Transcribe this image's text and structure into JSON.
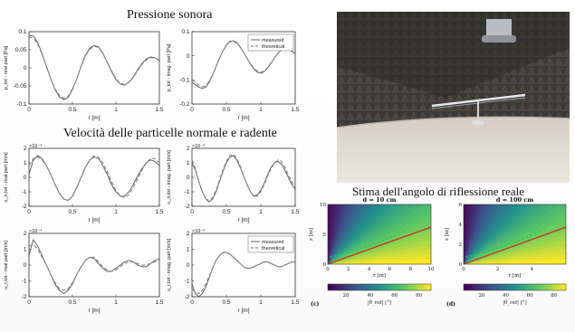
{
  "titles": {
    "sound_pressure": "Pressione sonora",
    "particle_velocity": "Velocità delle particelle normale e radente",
    "reflection_angle": "Stima dell'angolo di riflessione reale"
  },
  "legend": {
    "measured": "measured",
    "theoretical": "theoretical"
  },
  "colors": {
    "measured": "#555555",
    "theoretical": "#8a8a8a",
    "reflect_line": "#c0392b",
    "dash_line": "#22c55e"
  },
  "chart_data": [
    {
      "type": "line",
      "id": "p-real",
      "ylabel": "p_tot - real part [Pa]",
      "xlabel": "r [m]",
      "xlim": [
        0,
        1.5
      ],
      "ylim": [
        -0.1,
        0.1
      ],
      "xticks": [
        "0",
        "0.5",
        "1",
        "1.5"
      ],
      "yticks": [
        "0.1",
        "0.05",
        "0",
        "-0.05",
        "-0.1"
      ],
      "exponent": "",
      "legend": false,
      "x": [
        0,
        0.05,
        0.1,
        0.15,
        0.2,
        0.25,
        0.3,
        0.35,
        0.4,
        0.45,
        0.5,
        0.55,
        0.6,
        0.65,
        0.7,
        0.75,
        0.8,
        0.85,
        0.9,
        0.95,
        1.0,
        1.05,
        1.1,
        1.15,
        1.2,
        1.25,
        1.3,
        1.35,
        1.4,
        1.45,
        1.5
      ],
      "series": [
        {
          "name": "measured",
          "values": [
            0.09,
            0.088,
            0.07,
            0.04,
            0.005,
            -0.03,
            -0.06,
            -0.08,
            -0.088,
            -0.082,
            -0.06,
            -0.03,
            0.005,
            0.035,
            0.055,
            0.062,
            0.058,
            0.04,
            0.015,
            -0.01,
            -0.032,
            -0.045,
            -0.048,
            -0.04,
            -0.025,
            -0.005,
            0.012,
            0.025,
            0.03,
            0.028,
            0.02
          ]
        },
        {
          "name": "theoretical",
          "values": [
            0.085,
            0.082,
            0.066,
            0.038,
            0.004,
            -0.03,
            -0.058,
            -0.076,
            -0.084,
            -0.078,
            -0.058,
            -0.03,
            0.003,
            0.033,
            0.052,
            0.06,
            0.056,
            0.04,
            0.016,
            -0.008,
            -0.03,
            -0.043,
            -0.046,
            -0.04,
            -0.026,
            -0.008,
            0.01,
            0.022,
            0.028,
            0.027,
            0.021
          ]
        }
      ]
    },
    {
      "type": "line",
      "id": "p-imag",
      "ylabel": "p_tot - imag. part [Pa]",
      "xlabel": "r [m]",
      "xlim": [
        0,
        1.5
      ],
      "ylim": [
        -0.2,
        0.1
      ],
      "xticks": [
        "0",
        "0.5",
        "1",
        "1.5"
      ],
      "yticks": [
        "0.1",
        "0",
        "-0.1",
        "-0.2"
      ],
      "exponent": "",
      "legend": true,
      "x": [
        0,
        0.05,
        0.1,
        0.15,
        0.2,
        0.25,
        0.3,
        0.35,
        0.4,
        0.45,
        0.5,
        0.55,
        0.6,
        0.65,
        0.7,
        0.75,
        0.8,
        0.85,
        0.9,
        0.95,
        1.0,
        1.05,
        1.1,
        1.15,
        1.2,
        1.25,
        1.3,
        1.35,
        1.4,
        1.45,
        1.5
      ],
      "series": [
        {
          "name": "measured",
          "values": [
            -0.11,
            -0.12,
            -0.13,
            -0.135,
            -0.13,
            -0.11,
            -0.08,
            -0.045,
            -0.01,
            0.02,
            0.045,
            0.06,
            0.062,
            0.055,
            0.038,
            0.015,
            -0.01,
            -0.035,
            -0.055,
            -0.068,
            -0.072,
            -0.066,
            -0.05,
            -0.03,
            -0.008,
            0.012,
            0.025,
            0.03,
            0.028,
            0.02,
            0.008
          ]
        },
        {
          "name": "theoretical",
          "values": [
            -0.1,
            -0.11,
            -0.122,
            -0.128,
            -0.124,
            -0.106,
            -0.078,
            -0.044,
            -0.01,
            0.02,
            0.043,
            0.058,
            0.06,
            0.052,
            0.036,
            0.014,
            -0.01,
            -0.033,
            -0.052,
            -0.064,
            -0.068,
            -0.063,
            -0.048,
            -0.028,
            -0.008,
            0.01,
            0.023,
            0.028,
            0.026,
            0.019,
            0.008
          ]
        }
      ]
    },
    {
      "type": "line",
      "id": "un-real",
      "ylabel": "u_n,tot - real part [m/s]",
      "xlabel": "r [m]",
      "xlim": [
        0,
        1.5
      ],
      "ylim": [
        -2,
        2
      ],
      "xticks": [
        "0",
        "0.5",
        "1",
        "1.5"
      ],
      "yticks": [
        "2",
        "1",
        "0",
        "-1",
        "-2"
      ],
      "exponent": "×10⁻⁴",
      "legend": false,
      "x": [
        0,
        0.05,
        0.1,
        0.15,
        0.2,
        0.25,
        0.3,
        0.35,
        0.4,
        0.45,
        0.5,
        0.55,
        0.6,
        0.65,
        0.7,
        0.75,
        0.8,
        0.85,
        0.9,
        0.95,
        1.0,
        1.05,
        1.1,
        1.15,
        1.2,
        1.25,
        1.3,
        1.35,
        1.4,
        1.45,
        1.5
      ],
      "series": [
        {
          "name": "measured",
          "values": [
            0.2,
            1.2,
            1.5,
            1.3,
            0.8,
            0.2,
            -0.5,
            -1.1,
            -1.5,
            -1.6,
            -1.3,
            -0.7,
            0.0,
            0.7,
            1.2,
            1.4,
            1.3,
            0.8,
            0.2,
            -0.5,
            -1.0,
            -1.3,
            -1.3,
            -1.0,
            -0.5,
            0.1,
            0.6,
            1.0,
            1.2,
            1.1,
            0.8
          ]
        },
        {
          "name": "theoretical",
          "values": [
            0.8,
            1.3,
            1.4,
            1.2,
            0.8,
            0.2,
            -0.5,
            -1.1,
            -1.5,
            -1.6,
            -1.3,
            -0.7,
            0.0,
            0.7,
            1.2,
            1.5,
            1.4,
            1.0,
            0.4,
            -0.3,
            -0.9,
            -1.3,
            -1.4,
            -1.2,
            -0.7,
            -0.1,
            0.5,
            1.0,
            1.3,
            1.3,
            1.0
          ]
        }
      ]
    },
    {
      "type": "line",
      "id": "un-imag",
      "ylabel": "u_n,tot - imag. part [m/s]",
      "xlabel": "r [m]",
      "xlim": [
        0,
        1.5
      ],
      "ylim": [
        -2,
        2
      ],
      "xticks": [
        "0",
        "0.5",
        "1",
        "1.5"
      ],
      "yticks": [
        "2",
        "1",
        "0",
        "-1",
        "-2"
      ],
      "exponent": "×10⁻⁴",
      "legend": false,
      "x": [
        0,
        0.05,
        0.1,
        0.15,
        0.2,
        0.25,
        0.3,
        0.35,
        0.4,
        0.45,
        0.5,
        0.55,
        0.6,
        0.65,
        0.7,
        0.75,
        0.8,
        0.85,
        0.9,
        0.95,
        1.0,
        1.05,
        1.1,
        1.15,
        1.2,
        1.25,
        1.3,
        1.35,
        1.4,
        1.45,
        1.5
      ],
      "series": [
        {
          "name": "measured",
          "values": [
            1.0,
            0.5,
            -0.3,
            -1.0,
            -1.5,
            -1.7,
            -1.5,
            -1.0,
            -0.3,
            0.4,
            1.0,
            1.4,
            1.5,
            1.2,
            0.7,
            0.1,
            -0.5,
            -1.0,
            -1.3,
            -1.2,
            -0.9,
            -0.4,
            0.2,
            0.7,
            1.0,
            1.1,
            0.9,
            0.5,
            0.0,
            -0.5,
            -0.8
          ]
        },
        {
          "name": "theoretical",
          "values": [
            1.2,
            0.6,
            -0.3,
            -1.0,
            -1.5,
            -1.6,
            -1.4,
            -0.9,
            -0.2,
            0.5,
            1.1,
            1.5,
            1.6,
            1.3,
            0.8,
            0.1,
            -0.5,
            -1.0,
            -1.3,
            -1.3,
            -1.0,
            -0.5,
            0.1,
            0.6,
            1.0,
            1.2,
            1.1,
            0.7,
            0.2,
            -0.3,
            -0.7
          ]
        }
      ]
    },
    {
      "type": "line",
      "id": "ur-real",
      "ylabel": "u_r,tot - real part [m/s]",
      "xlabel": "r [m]",
      "xlim": [
        0,
        1.5
      ],
      "ylim": [
        -2,
        2
      ],
      "xticks": [
        "0",
        "0.5",
        "1",
        "1.5"
      ],
      "yticks": [
        "2",
        "1",
        "0",
        "-1",
        "-2"
      ],
      "exponent": "×10⁻⁴",
      "legend": false,
      "x": [
        0,
        0.05,
        0.1,
        0.15,
        0.2,
        0.25,
        0.3,
        0.35,
        0.4,
        0.45,
        0.5,
        0.55,
        0.6,
        0.65,
        0.7,
        0.75,
        0.8,
        0.85,
        0.9,
        0.95,
        1.0,
        1.05,
        1.1,
        1.15,
        1.2,
        1.25,
        1.3,
        1.35,
        1.4,
        1.45,
        1.5
      ],
      "series": [
        {
          "name": "measured",
          "values": [
            0.6,
            1.6,
            1.2,
            0.6,
            0.0,
            -0.6,
            -1.2,
            -1.6,
            -1.8,
            -1.6,
            -1.2,
            -0.6,
            -0.1,
            0.3,
            0.5,
            0.4,
            0.1,
            -0.2,
            -0.4,
            -0.4,
            -0.2,
            0.0,
            0.2,
            0.3,
            0.2,
            0.0,
            -0.1,
            -0.1,
            0.1,
            0.3,
            0.4
          ]
        },
        {
          "name": "theoretical",
          "values": [
            1.2,
            1.3,
            1.0,
            0.5,
            0.0,
            -0.6,
            -1.1,
            -1.5,
            -1.6,
            -1.5,
            -1.1,
            -0.6,
            -0.1,
            0.3,
            0.5,
            0.5,
            0.2,
            -0.1,
            -0.3,
            -0.4,
            -0.3,
            -0.1,
            0.1,
            0.2,
            0.2,
            0.1,
            0.0,
            0.0,
            0.1,
            0.2,
            0.3
          ]
        }
      ]
    },
    {
      "type": "line",
      "id": "ur-imag",
      "ylabel": "u_r,tot - imag. part [m/s]",
      "xlabel": "r [m]",
      "xlim": [
        0,
        1.5
      ],
      "ylim": [
        -2,
        2
      ],
      "xticks": [
        "0",
        "0.5",
        "1",
        "1.5"
      ],
      "yticks": [
        "2",
        "1",
        "0",
        "-1",
        "-2"
      ],
      "exponent": "×10⁻⁴",
      "legend": true,
      "x": [
        0,
        0.05,
        0.1,
        0.15,
        0.2,
        0.25,
        0.3,
        0.35,
        0.4,
        0.45,
        0.5,
        0.55,
        0.6,
        0.65,
        0.7,
        0.75,
        0.8,
        0.85,
        0.9,
        0.95,
        1.0,
        1.05,
        1.1,
        1.15,
        1.2,
        1.25,
        1.3,
        1.35,
        1.4,
        1.45,
        1.5
      ],
      "series": [
        {
          "name": "measured",
          "values": [
            -1.2,
            -1.8,
            -2.0,
            -1.8,
            -1.4,
            -0.8,
            -0.2,
            0.3,
            0.6,
            0.8,
            0.8,
            0.7,
            0.5,
            0.3,
            0.1,
            -0.1,
            -0.2,
            -0.2,
            -0.1,
            0.0,
            0.1,
            0.2,
            0.2,
            0.1,
            0.0,
            -0.1,
            -0.1,
            0.0,
            0.1,
            0.2,
            0.2
          ]
        },
        {
          "name": "theoretical",
          "values": [
            -1.5,
            -1.7,
            -1.8,
            -1.6,
            -1.2,
            -0.7,
            -0.2,
            0.3,
            0.6,
            0.8,
            0.8,
            0.7,
            0.5,
            0.3,
            0.1,
            -0.1,
            -0.2,
            -0.2,
            -0.1,
            0.0,
            0.1,
            0.2,
            0.2,
            0.1,
            0.0,
            -0.1,
            -0.1,
            0.0,
            0.1,
            0.2,
            0.2
          ]
        }
      ]
    },
    {
      "type": "heatmap",
      "id": "hm-c",
      "title": "d = 10 cm",
      "xlabel": "r [m]",
      "ylabel": "z [m]",
      "xlim": [
        0,
        10
      ],
      "ylim": [
        0,
        10
      ],
      "xticks": [
        "0",
        "2",
        "4",
        "6",
        "8",
        "10"
      ],
      "yticks": [
        "10",
        "5",
        "0"
      ],
      "colorbar_label": "|θ_ref| [°]",
      "colorbar_ticks": [
        "20",
        "40",
        "60",
        "80"
      ],
      "panel_label": "(c)"
    },
    {
      "type": "heatmap",
      "id": "hm-d",
      "title": "d = 100 cm",
      "xlabel": "r [m]",
      "ylabel": "z [m]",
      "xlim": [
        0,
        6
      ],
      "ylim": [
        0,
        6
      ],
      "xticks": [
        "0",
        "2",
        "4"
      ],
      "yticks": [
        "6",
        "4",
        "2",
        "0"
      ],
      "colorbar_label": "|θ_ref| [°]",
      "colorbar_ticks": [
        "20",
        "40",
        "60",
        "80"
      ],
      "panel_label": "(d)"
    }
  ]
}
